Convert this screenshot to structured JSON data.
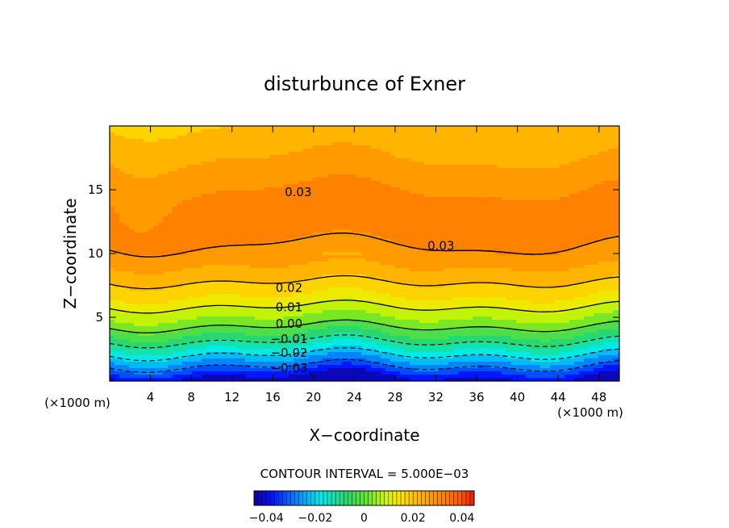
{
  "chart_data": {
    "type": "heatmap",
    "title": "disturbunce of Exner",
    "xlabel": "X−coordinate",
    "ylabel": "Z−coordinate",
    "x_unit": "(×1000 m)",
    "y_unit": "(×1000 m)",
    "xlim": [
      0,
      50
    ],
    "ylim": [
      0,
      20
    ],
    "x_ticks": [
      4,
      8,
      12,
      16,
      20,
      24,
      28,
      32,
      36,
      40,
      44,
      48
    ],
    "y_ticks": [
      5,
      10,
      15
    ],
    "x_tick_labels": [
      "4",
      "8",
      "12",
      "16",
      "20",
      "24",
      "28",
      "32",
      "36",
      "40",
      "44",
      "48"
    ],
    "y_tick_labels": [
      "5",
      "10",
      "15"
    ],
    "contour_interval_text": "CONTOUR INTERVAL = 5.000E−03",
    "contour_interval": 0.005,
    "value_range": [
      -0.045,
      0.045
    ],
    "colorbar": {
      "ticks": [
        -0.04,
        -0.02,
        0,
        0.02,
        0.04
      ],
      "tick_labels": [
        "−0.04",
        "−0.02",
        "0",
        "0.02",
        "0.04"
      ]
    },
    "contour_labels": [
      {
        "text": "0.03",
        "x": 18.5,
        "z": 14.8
      },
      {
        "text": "0.03",
        "x": 32.5,
        "z": 10.6
      },
      {
        "text": "0.02",
        "x": 17.6,
        "z": 7.3
      },
      {
        "text": "0.01",
        "x": 17.6,
        "z": 5.8
      },
      {
        "text": "0.00",
        "x": 17.6,
        "z": 4.5
      },
      {
        "text": "−0.01",
        "x": 17.6,
        "z": 3.3
      },
      {
        "text": "−0.02",
        "x": 17.6,
        "z": 2.2
      },
      {
        "text": "−0.03",
        "x": 17.6,
        "z": 1.0
      }
    ],
    "field_profile": [
      {
        "z": 0.0,
        "value": -0.045
      },
      {
        "z": 1.0,
        "value": -0.032
      },
      {
        "z": 2.0,
        "value": -0.021
      },
      {
        "z": 3.0,
        "value": -0.011
      },
      {
        "z": 4.0,
        "value": -0.002
      },
      {
        "z": 5.0,
        "value": 0.005
      },
      {
        "z": 6.0,
        "value": 0.011
      },
      {
        "z": 7.0,
        "value": 0.017
      },
      {
        "z": 8.0,
        "value": 0.021
      },
      {
        "z": 9.0,
        "value": 0.025
      },
      {
        "z": 10.0,
        "value": 0.028
      },
      {
        "z": 11.0,
        "value": 0.031
      },
      {
        "z": 12.0,
        "value": 0.033
      },
      {
        "z": 13.0,
        "value": 0.033
      },
      {
        "z": 14.0,
        "value": 0.032
      },
      {
        "z": 15.0,
        "value": 0.03
      },
      {
        "z": 16.0,
        "value": 0.028
      },
      {
        "z": 17.0,
        "value": 0.026
      },
      {
        "z": 18.0,
        "value": 0.024
      },
      {
        "z": 19.0,
        "value": 0.022
      },
      {
        "z": 20.0,
        "value": 0.02
      }
    ]
  }
}
